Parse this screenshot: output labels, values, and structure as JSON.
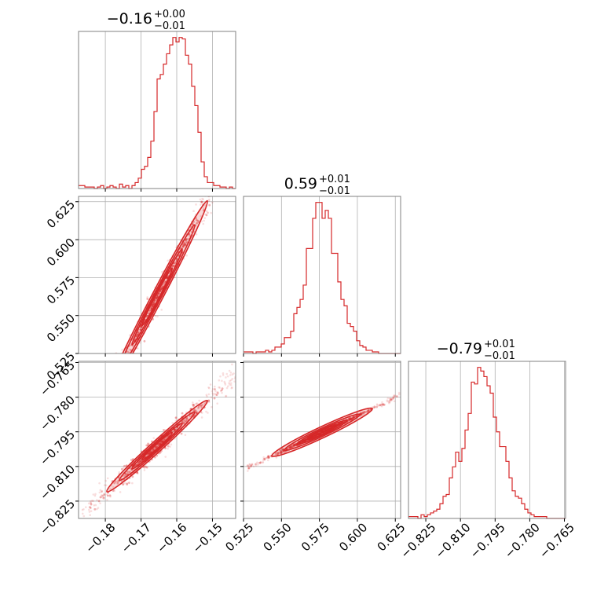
{
  "chart_data": {
    "type": "corner",
    "color": "#d62728",
    "parameters": [
      {
        "title": {
          "median": "−0.16",
          "upper": "+0.00",
          "lower": "−0.01"
        },
        "range": [
          -0.1875,
          -0.1435
        ],
        "ticks": [
          -0.18,
          -0.17,
          -0.16,
          -0.15
        ],
        "tick_labels": [
          "−0.18",
          "−0.17",
          "−0.16",
          "−0.15"
        ],
        "histogram": {
          "edges_start": -0.1875,
          "bin_width": 0.00088,
          "counts": [
            2,
            2,
            1,
            1,
            1,
            0,
            1,
            2,
            0,
            1,
            2,
            1,
            0,
            3,
            1,
            2,
            0,
            2,
            4,
            7,
            13,
            15,
            21,
            32,
            52,
            74,
            77,
            84,
            91,
            97,
            102,
            99,
            102,
            101,
            90,
            84,
            69,
            56,
            38,
            18,
            8,
            4,
            4,
            2,
            2,
            1,
            1,
            0,
            1,
            0
          ]
        }
      },
      {
        "title": {
          "median": "0.59",
          "upper": "+0.01",
          "lower": "−0.01"
        },
        "range": [
          0.525,
          0.6285
        ],
        "ticks": [
          0.525,
          0.55,
          0.575,
          0.6,
          0.625
        ],
        "tick_labels": [
          "0.525",
          "0.550",
          "0.575",
          "0.600",
          "0.625"
        ],
        "histogram": {
          "edges_start": 0.525,
          "bin_width": 0.00207,
          "counts": [
            1,
            1,
            1,
            0,
            1,
            1,
            1,
            2,
            1,
            2,
            4,
            4,
            6,
            10,
            10,
            14,
            25,
            29,
            34,
            43,
            66,
            66,
            85,
            95,
            95,
            85,
            90,
            85,
            63,
            63,
            45,
            34,
            30,
            19,
            17,
            14,
            8,
            5,
            4,
            2,
            2,
            1,
            1,
            0,
            0,
            0,
            0,
            0,
            0,
            0
          ]
        }
      },
      {
        "title": {
          "median": "−0.79",
          "upper": "+0.01",
          "lower": "−0.01"
        },
        "range": [
          -0.8325,
          -0.7645
        ],
        "ticks": [
          -0.825,
          -0.81,
          -0.795,
          -0.78,
          -0.765
        ],
        "tick_labels": [
          "−0.825",
          "−0.810",
          "−0.795",
          "−0.780",
          "−0.765"
        ],
        "histogram": {
          "edges_start": -0.8325,
          "bin_width": 0.00136,
          "counts": [
            1,
            1,
            1,
            0,
            2,
            1,
            2,
            3,
            4,
            5,
            8,
            12,
            13,
            22,
            28,
            36,
            31,
            38,
            48,
            57,
            74,
            73,
            82,
            80,
            77,
            72,
            68,
            55,
            47,
            39,
            39,
            31,
            22,
            15,
            12,
            11,
            8,
            5,
            3,
            2,
            1,
            1,
            1,
            1,
            0,
            0,
            0,
            0,
            0,
            0
          ]
        }
      }
    ],
    "pairs": [
      {
        "x": 0,
        "y": 1,
        "slope": 4.5,
        "intercept": 1.307,
        "spread": 0.0055,
        "n_points": 260
      },
      {
        "x": 0,
        "y": 2,
        "slope": 1.4,
        "intercept": -0.5695,
        "spread": 0.0028,
        "n_points": 260
      },
      {
        "x": 1,
        "y": 2,
        "slope": 0.31,
        "intercept": -0.974,
        "spread": 0.0006,
        "n_points": 260
      }
    ],
    "grid": true
  }
}
